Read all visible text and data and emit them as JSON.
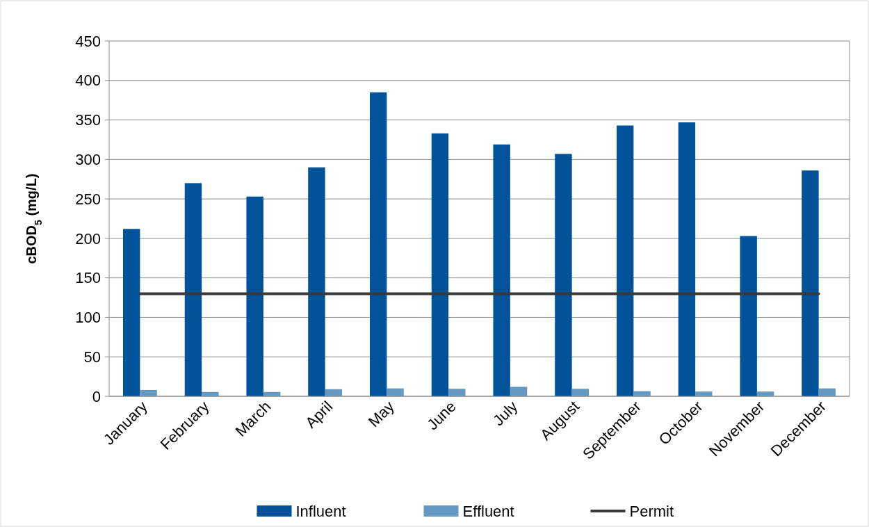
{
  "chart_data": {
    "type": "bar",
    "ylabel": "cBOD$_{5}$  (mg/L)",
    "categories": [
      "January",
      "February",
      "March",
      "April",
      "May",
      "June",
      "July",
      "August",
      "September",
      "October",
      "November",
      "December"
    ],
    "series": [
      {
        "name": "Influent",
        "color": "#02529a",
        "values": [
          212,
          270,
          253,
          290,
          385,
          333,
          319,
          307,
          343,
          347,
          203,
          286
        ]
      },
      {
        "name": "Effluent",
        "color": "#6699c2",
        "values": [
          8,
          5.5,
          5.5,
          9,
          10,
          9.5,
          12,
          9.5,
          6.5,
          6,
          6,
          10
        ]
      },
      {
        "name": "Permit",
        "type": "line",
        "color": "#3a3a3a",
        "values": [
          130,
          130,
          130,
          130,
          130,
          130,
          130,
          130,
          130,
          130,
          130,
          130
        ]
      }
    ],
    "ylim": [
      0,
      450
    ],
    "yticks": [
      0,
      50,
      100,
      150,
      200,
      250,
      300,
      350,
      400,
      450
    ],
    "grid": "y",
    "legend": "bottom"
  }
}
